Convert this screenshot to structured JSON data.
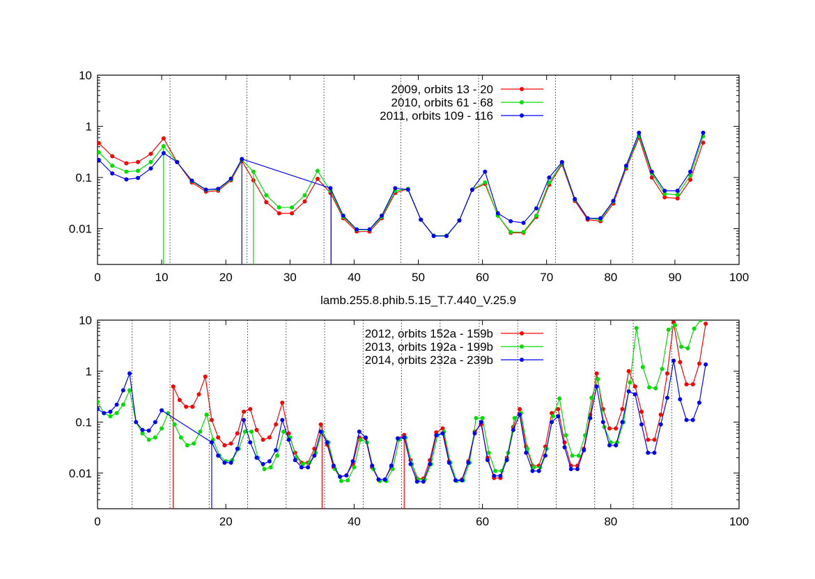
{
  "chart_data": [
    {
      "type": "line",
      "title": "",
      "xlabel": "lamb.255.8.phib.5.15_T.7.440_V.25.9",
      "ylabel": "",
      "xlim": [
        0,
        100
      ],
      "ylim": [
        0.002,
        10
      ],
      "yscale": "log",
      "xticks": [
        0,
        10,
        20,
        30,
        40,
        50,
        60,
        70,
        80,
        90,
        100
      ],
      "yticks": [
        0.01,
        0.1,
        1,
        10
      ],
      "ytick_labels": [
        "0.01",
        "0.1",
        "1",
        "10"
      ],
      "vlines": [
        11.3,
        23.3,
        35.3,
        47.3,
        59.4,
        71.4,
        83.4
      ],
      "legend_position": "top-center",
      "series": [
        {
          "name": "2009, orbits     13 - 20",
          "color": "#ff0000",
          "drops": [
            36.4
          ],
          "x": [
            0.2,
            2.3,
            4.5,
            6.3,
            8.3,
            10.3,
            12.4,
            14.7,
            16.9,
            18.8,
            20.8,
            22.5,
            24.3,
            26.3,
            28.3,
            30.3,
            32.3,
            34.3,
            36.3,
            38.3,
            40.4,
            42.4,
            44.3,
            46.4,
            48.4,
            50.4,
            52.4,
            54.4,
            56.4,
            58.4,
            60.4,
            62.4,
            64.4,
            66.4,
            68.4,
            70.4,
            72.4,
            74.4,
            76.4,
            78.4,
            80.4,
            82.4,
            84.4,
            86.4,
            88.4,
            90.4,
            92.4,
            94.4
          ],
          "y": [
            0.47,
            0.26,
            0.19,
            0.2,
            0.29,
            0.58,
            0.2,
            0.08,
            0.053,
            0.055,
            0.088,
            0.21,
            0.088,
            0.033,
            0.02,
            0.02,
            0.034,
            0.094,
            0.05,
            0.016,
            0.0088,
            0.0088,
            0.016,
            0.05,
            0.06,
            0.015,
            0.0073,
            0.0072,
            0.0145,
            0.057,
            0.075,
            0.018,
            0.0083,
            0.0083,
            0.017,
            0.072,
            0.18,
            0.035,
            0.015,
            0.014,
            0.031,
            0.15,
            0.6,
            0.1,
            0.041,
            0.039,
            0.09,
            0.48
          ]
        },
        {
          "name": "2010, orbits     61 - 68",
          "color": "#00dd00",
          "drops": [
            10.3,
            24.3
          ],
          "x": [
            0.2,
            2.3,
            4.5,
            6.3,
            8.3,
            10.3,
            12.4,
            14.7,
            16.9,
            18.8,
            20.8,
            22.5,
            24.3,
            26.3,
            28.3,
            30.3,
            32.3,
            34.3,
            36.3,
            38.3,
            40.4,
            42.4,
            44.3,
            46.4,
            48.4,
            50.4,
            52.4,
            54.4,
            56.4,
            58.4,
            60.4,
            62.4,
            64.4,
            66.4,
            68.4,
            70.4,
            72.4,
            74.4,
            76.4,
            78.4,
            80.4,
            82.4,
            84.4,
            86.4,
            88.4,
            90.4,
            92.4,
            94.4
          ],
          "y": [
            0.31,
            0.17,
            0.13,
            0.135,
            0.2,
            0.41,
            0.2,
            0.085,
            0.057,
            0.058,
            0.092,
            0.22,
            0.13,
            0.045,
            0.026,
            0.026,
            0.045,
            0.135,
            0.055,
            0.017,
            0.0095,
            0.0095,
            0.017,
            0.055,
            0.06,
            0.015,
            0.0073,
            0.0073,
            0.0145,
            0.058,
            0.08,
            0.018,
            0.0086,
            0.0086,
            0.018,
            0.08,
            0.19,
            0.037,
            0.016,
            0.015,
            0.034,
            0.16,
            0.66,
            0.12,
            0.048,
            0.046,
            0.11,
            0.64
          ]
        },
        {
          "name": "2011, orbits 109 - 116",
          "color": "#0000ff",
          "drops": [
            22.5,
            36.4
          ],
          "x": [
            0.2,
            2.3,
            4.5,
            6.3,
            8.3,
            10.3,
            12.4,
            14.7,
            16.9,
            18.8,
            20.8,
            22.5,
            36.3,
            38.3,
            40.4,
            42.4,
            44.3,
            46.4,
            48.4,
            50.4,
            52.4,
            54.4,
            56.4,
            58.4,
            60.4,
            62.4,
            64.4,
            66.4,
            68.4,
            70.4,
            72.4,
            74.4,
            76.4,
            78.4,
            80.4,
            82.4,
            84.4,
            86.4,
            88.4,
            90.4,
            92.4,
            94.4
          ],
          "y": [
            0.22,
            0.12,
            0.092,
            0.098,
            0.15,
            0.3,
            0.2,
            0.087,
            0.058,
            0.06,
            0.095,
            0.23,
            0.062,
            0.018,
            0.0097,
            0.0097,
            0.018,
            0.062,
            0.058,
            0.015,
            0.0072,
            0.0072,
            0.0145,
            0.058,
            0.13,
            0.02,
            0.014,
            0.013,
            0.025,
            0.1,
            0.2,
            0.038,
            0.016,
            0.016,
            0.035,
            0.17,
            0.75,
            0.13,
            0.055,
            0.055,
            0.13,
            0.75
          ]
        }
      ]
    },
    {
      "type": "line",
      "title": "",
      "xlabel": "",
      "ylabel": "",
      "xlim": [
        0,
        100
      ],
      "ylim": [
        0.002,
        10
      ],
      "yscale": "log",
      "xticks": [
        0,
        20,
        40,
        60,
        80,
        100
      ],
      "yticks": [
        0.01,
        0.1,
        1,
        10
      ],
      "ytick_labels": [
        "0.01",
        "0.1",
        "1",
        "10"
      ],
      "vlines": [
        5.4,
        11.3,
        17.4,
        23.4,
        29.4,
        35.4,
        41.4,
        47.4,
        53.4,
        59.5,
        65.5,
        71.5,
        77.5,
        83.5,
        89.5
      ],
      "legend_position": "top-center",
      "series": [
        {
          "name": "2012, orbits 152a - 159b",
          "color": "#ff0000",
          "drops": [
            11.8,
            35.0,
            47.8
          ],
          "x": [
            11.8,
            12.8,
            13.8,
            14.8,
            15.8,
            16.8,
            17.8,
            18.8,
            19.8,
            20.8,
            21.8,
            22.8,
            23.8,
            24.8,
            25.8,
            26.8,
            27.8,
            28.8,
            29.8,
            30.8,
            31.8,
            32.8,
            33.8,
            34.8,
            35.8,
            36.8,
            37.8,
            38.8,
            39.8,
            40.8,
            41.8,
            42.8,
            43.8,
            44.8,
            45.8,
            46.8,
            47.8,
            48.8,
            49.8,
            50.8,
            51.8,
            52.8,
            53.8,
            54.8,
            55.8,
            56.8,
            57.8,
            58.8,
            59.8,
            60.8,
            61.8,
            62.8,
            63.8,
            64.8,
            65.8,
            66.8,
            67.8,
            68.8,
            69.8,
            70.8,
            71.8,
            72.8,
            73.8,
            74.8,
            75.8,
            76.8,
            77.8,
            78.8,
            79.8,
            80.8,
            81.8,
            82.8,
            83.8,
            84.8,
            85.8,
            86.8,
            87.8,
            88.8,
            89.8,
            90.8,
            91.8,
            92.8,
            93.8,
            94.8
          ],
          "y": [
            0.5,
            0.27,
            0.2,
            0.2,
            0.35,
            0.78,
            0.11,
            0.05,
            0.035,
            0.038,
            0.06,
            0.16,
            0.18,
            0.07,
            0.045,
            0.05,
            0.09,
            0.24,
            0.06,
            0.025,
            0.016,
            0.016,
            0.03,
            0.09,
            0.036,
            0.013,
            0.0085,
            0.009,
            0.015,
            0.05,
            0.048,
            0.013,
            0.0075,
            0.0075,
            0.013,
            0.048,
            0.056,
            0.018,
            0.0078,
            0.0078,
            0.018,
            0.063,
            0.075,
            0.017,
            0.0072,
            0.0075,
            0.017,
            0.065,
            0.09,
            0.02,
            0.008,
            0.008,
            0.02,
            0.08,
            0.18,
            0.033,
            0.014,
            0.014,
            0.033,
            0.15,
            0.18,
            0.04,
            0.014,
            0.014,
            0.03,
            0.14,
            0.9,
            0.18,
            0.075,
            0.075,
            0.18,
            1.0,
            0.5,
            0.16,
            0.045,
            0.045,
            0.14,
            0.9,
            9.0,
            1.5,
            0.55,
            0.55,
            1.4,
            8.5
          ]
        },
        {
          "name": "2013, orbits 192a - 199b",
          "color": "#00dd00",
          "drops": [],
          "x": [
            0,
            1,
            2,
            3,
            4,
            5,
            6,
            7,
            8,
            9,
            10,
            11,
            12,
            13,
            14,
            15,
            16,
            17,
            18,
            19,
            20,
            21,
            22,
            23,
            24,
            25,
            26,
            27,
            28,
            29,
            30,
            31,
            32,
            33,
            34,
            35,
            36,
            37,
            38,
            39,
            40,
            41,
            42,
            43,
            44,
            45,
            46,
            47,
            48,
            49,
            50,
            51,
            52,
            53,
            54,
            55,
            56,
            57,
            58,
            59,
            60,
            61,
            62,
            63,
            64,
            65,
            66,
            67,
            68,
            69,
            70,
            71,
            72,
            73,
            74,
            75,
            76,
            77,
            78,
            79,
            80,
            81,
            82,
            83,
            84,
            85,
            86,
            87,
            88,
            89,
            90,
            91,
            92,
            93,
            94
          ],
          "y": [
            0.25,
            0.15,
            0.13,
            0.15,
            0.22,
            0.42,
            0.1,
            0.06,
            0.045,
            0.05,
            0.075,
            0.15,
            0.09,
            0.05,
            0.035,
            0.038,
            0.065,
            0.14,
            0.045,
            0.022,
            0.017,
            0.018,
            0.03,
            0.065,
            0.065,
            0.02,
            0.012,
            0.013,
            0.022,
            0.065,
            0.05,
            0.02,
            0.015,
            0.016,
            0.025,
            0.065,
            0.04,
            0.012,
            0.007,
            0.0072,
            0.013,
            0.045,
            0.04,
            0.012,
            0.007,
            0.007,
            0.012,
            0.045,
            0.05,
            0.015,
            0.0075,
            0.0075,
            0.015,
            0.055,
            0.065,
            0.016,
            0.007,
            0.0072,
            0.016,
            0.12,
            0.12,
            0.025,
            0.011,
            0.011,
            0.025,
            0.12,
            0.15,
            0.03,
            0.013,
            0.013,
            0.03,
            0.13,
            0.29,
            0.055,
            0.022,
            0.022,
            0.055,
            0.3,
            0.7,
            0.08,
            0.04,
            0.04,
            0.1,
            0.6,
            7.0,
            1.2,
            0.48,
            0.46,
            1.1,
            6.5,
            8.0,
            3.0,
            2.8,
            6.8,
            10
          ]
        },
        {
          "name": "2014, orbits 232a - 239b",
          "color": "#0000ff",
          "drops": [
            10.8,
            17.8
          ],
          "x": [
            0,
            1,
            2,
            3,
            4,
            5,
            6,
            7,
            8,
            9,
            10,
            17.8,
            18.8,
            19.8,
            20.8,
            21.8,
            22.8,
            23.8,
            24.8,
            25.8,
            26.8,
            27.8,
            28.8,
            29.8,
            30.8,
            31.8,
            32.8,
            33.8,
            34.8,
            35.8,
            36.8,
            37.8,
            38.8,
            39.8,
            40.8,
            41.8,
            42.8,
            43.8,
            44.8,
            45.8,
            46.8,
            47.8,
            48.8,
            49.8,
            50.8,
            51.8,
            52.8,
            53.8,
            54.8,
            55.8,
            56.8,
            57.8,
            58.8,
            59.8,
            60.8,
            61.8,
            62.8,
            63.8,
            64.8,
            65.8,
            66.8,
            67.8,
            68.8,
            69.8,
            70.8,
            71.8,
            72.8,
            73.8,
            74.8,
            75.8,
            76.8,
            77.8,
            78.8,
            79.8,
            80.8,
            81.8,
            82.8,
            83.8,
            84.8,
            85.8,
            86.8,
            87.8,
            88.8,
            89.8,
            90.8,
            91.8,
            92.8,
            93.8,
            94.8
          ],
          "y": [
            0.18,
            0.15,
            0.16,
            0.22,
            0.42,
            0.9,
            0.1,
            0.07,
            0.068,
            0.1,
            0.17,
            0.04,
            0.022,
            0.016,
            0.016,
            0.03,
            0.11,
            0.04,
            0.02,
            0.015,
            0.017,
            0.028,
            0.11,
            0.045,
            0.018,
            0.013,
            0.013,
            0.022,
            0.065,
            0.04,
            0.014,
            0.0085,
            0.009,
            0.017,
            0.065,
            0.05,
            0.014,
            0.0075,
            0.0075,
            0.014,
            0.048,
            0.05,
            0.015,
            0.0068,
            0.0068,
            0.015,
            0.055,
            0.06,
            0.016,
            0.0072,
            0.0072,
            0.016,
            0.06,
            0.1,
            0.018,
            0.0088,
            0.0088,
            0.018,
            0.07,
            0.14,
            0.025,
            0.011,
            0.011,
            0.022,
            0.1,
            0.13,
            0.032,
            0.012,
            0.012,
            0.028,
            0.12,
            0.5,
            0.1,
            0.035,
            0.035,
            0.1,
            0.4,
            0.35,
            0.09,
            0.025,
            0.025,
            0.09,
            0.3,
            1.6,
            0.28,
            0.11,
            0.11,
            0.24,
            1.35
          ]
        }
      ]
    }
  ]
}
